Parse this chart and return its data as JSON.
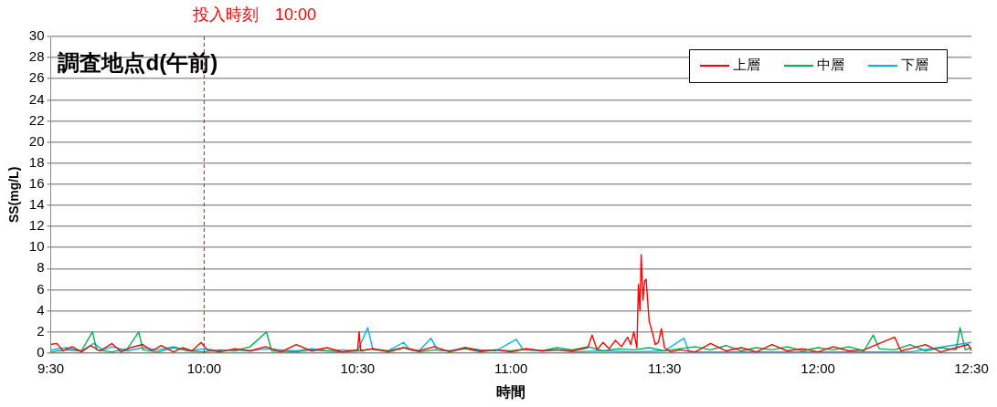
{
  "chart_data": {
    "type": "line",
    "title": "調査地点d(午前)",
    "xlabel": "時間",
    "ylabel": "SS(mg/L)",
    "xlim": [
      9.5,
      12.5
    ],
    "xticks": [
      {
        "value": 9.5,
        "label": "9:30"
      },
      {
        "value": 10,
        "label": "10:00"
      },
      {
        "value": 10.5,
        "label": "10:30"
      },
      {
        "value": 11,
        "label": "11:00"
      },
      {
        "value": 11.5,
        "label": "11:30"
      },
      {
        "value": 12,
        "label": "12:00"
      },
      {
        "value": 12.5,
        "label": "12:30"
      }
    ],
    "ylim": [
      0,
      30
    ],
    "yticks": [
      0,
      2,
      4,
      6,
      8,
      10,
      12,
      14,
      16,
      18,
      20,
      22,
      24,
      26,
      28,
      30
    ],
    "grid": "y",
    "legend": "top right",
    "marker": "none",
    "line_style": "solid",
    "ref_lines": [
      {
        "axis": "x",
        "value": 10,
        "label": "投入時刻　10:00",
        "color": "#ff0000",
        "line_style": "dashed"
      }
    ],
    "series": [
      {
        "name": "上層",
        "color": "#ff0000",
        "x": [
          9.5,
          9.52,
          9.54,
          9.57,
          9.6,
          9.63,
          9.66,
          9.7,
          9.73,
          9.76,
          9.8,
          9.83,
          9.86,
          9.9,
          9.93,
          9.96,
          9.99,
          10.01,
          10.05,
          10.1,
          10.15,
          10.2,
          10.25,
          10.3,
          10.35,
          10.4,
          10.45,
          10.5,
          10.505,
          10.51,
          10.55,
          10.6,
          10.65,
          10.7,
          10.75,
          10.8,
          10.85,
          10.9,
          10.95,
          11.0,
          11.05,
          11.1,
          11.15,
          11.2,
          11.25,
          11.264,
          11.28,
          11.3,
          11.32,
          11.34,
          11.36,
          11.38,
          11.39,
          11.4,
          11.41,
          11.415,
          11.42,
          11.424,
          11.43,
          11.435,
          11.44,
          11.445,
          11.45,
          11.46,
          11.47,
          11.48,
          11.49,
          11.5,
          11.52,
          11.55,
          11.6,
          11.65,
          11.7,
          11.75,
          11.8,
          11.85,
          11.9,
          11.95,
          12.0,
          12.05,
          12.1,
          12.15,
          12.2,
          12.25,
          12.27,
          12.3,
          12.35,
          12.4,
          12.45,
          12.49,
          12.5
        ],
        "values": [
          0.8,
          0.9,
          0.2,
          0.6,
          0.1,
          0.7,
          0.2,
          0.9,
          0.1,
          0.5,
          0.8,
          0.2,
          0.7,
          0.1,
          0.5,
          0.2,
          1.0,
          0.3,
          0.1,
          0.4,
          0.2,
          0.6,
          0.1,
          0.8,
          0.2,
          0.5,
          0.1,
          0.3,
          2.0,
          0.2,
          0.4,
          0.1,
          0.5,
          0.2,
          0.6,
          0.1,
          0.5,
          0.2,
          0.3,
          0.1,
          0.4,
          0.2,
          0.3,
          0.2,
          0.5,
          1.7,
          0.3,
          1.0,
          0.4,
          1.2,
          0.6,
          1.5,
          0.8,
          2.0,
          0.5,
          6.5,
          4.0,
          9.3,
          5.0,
          6.8,
          7.0,
          5.0,
          3.0,
          2.0,
          0.8,
          1.0,
          2.3,
          0.5,
          0.1,
          0.3,
          0.1,
          0.9,
          0.2,
          0.5,
          0.1,
          0.8,
          0.2,
          0.4,
          0.1,
          0.6,
          0.2,
          0.3,
          0.9,
          1.5,
          0.2,
          0.4,
          0.8,
          0.1,
          0.5,
          0.8,
          0.2
        ]
      },
      {
        "name": "中層",
        "color": "#00b050",
        "x": [
          9.5,
          9.55,
          9.6,
          9.636,
          9.65,
          9.7,
          9.75,
          9.787,
          9.8,
          9.85,
          9.9,
          9.95,
          10.0,
          10.05,
          10.1,
          10.15,
          10.203,
          10.22,
          10.3,
          10.35,
          10.4,
          10.45,
          10.5,
          10.55,
          10.6,
          10.65,
          10.7,
          10.75,
          10.8,
          10.85,
          10.9,
          10.95,
          11.0,
          11.05,
          11.1,
          11.15,
          11.2,
          11.25,
          11.3,
          11.35,
          11.4,
          11.45,
          11.5,
          11.55,
          11.6,
          11.65,
          11.7,
          11.75,
          11.8,
          11.85,
          11.9,
          11.95,
          12.0,
          12.05,
          12.1,
          12.15,
          12.18,
          12.2,
          12.25,
          12.3,
          12.35,
          12.4,
          12.45,
          12.463,
          12.48,
          12.5
        ],
        "values": [
          0.1,
          0.3,
          0.2,
          2.0,
          0.3,
          0.1,
          0.4,
          2.0,
          0.3,
          0.1,
          0.5,
          0.2,
          0.1,
          0.3,
          0.2,
          0.6,
          2.0,
          0.2,
          0.1,
          0.3,
          0.2,
          0.1,
          0.2,
          0.4,
          0.2,
          0.5,
          0.1,
          0.3,
          0.2,
          0.4,
          0.1,
          0.3,
          0.2,
          0.4,
          0.2,
          0.5,
          0.3,
          0.6,
          0.2,
          0.4,
          0.3,
          0.5,
          0.2,
          0.4,
          0.6,
          0.3,
          0.7,
          0.2,
          0.5,
          0.3,
          0.6,
          0.2,
          0.5,
          0.3,
          0.6,
          0.2,
          1.7,
          0.4,
          0.3,
          0.8,
          0.2,
          0.5,
          0.3,
          2.4,
          0.3,
          0.5
        ]
      },
      {
        "name": "下層",
        "color": "#00b0f0",
        "x": [
          9.5,
          9.55,
          9.6,
          9.64,
          9.67,
          9.7,
          9.75,
          9.8,
          9.85,
          9.9,
          9.95,
          10.0,
          10.05,
          10.1,
          10.15,
          10.2,
          10.25,
          10.3,
          10.35,
          10.4,
          10.45,
          10.5,
          10.533,
          10.55,
          10.6,
          10.65,
          10.67,
          10.7,
          10.739,
          10.76,
          10.8,
          10.85,
          10.9,
          10.95,
          11.017,
          11.04,
          11.1,
          11.15,
          11.2,
          11.3,
          11.4,
          11.5,
          11.563,
          11.58,
          11.7,
          11.9,
          12.1,
          12.3,
          12.5
        ],
        "values": [
          0.3,
          0.5,
          0.2,
          0.9,
          0.3,
          0.6,
          0.2,
          0.5,
          0.3,
          0.6,
          0.2,
          0.4,
          0.2,
          0.3,
          0.2,
          0.4,
          0.3,
          0.2,
          0.4,
          0.2,
          0.3,
          0.2,
          2.4,
          0.3,
          0.2,
          1.0,
          0.3,
          0.2,
          1.4,
          0.3,
          0.2,
          0.5,
          0.3,
          0.2,
          1.3,
          0.3,
          0.2,
          0.3,
          0.1,
          0.2,
          0.1,
          0.2,
          1.4,
          0.1,
          0.1,
          0.1,
          0.1,
          0.1,
          1.0
        ]
      }
    ]
  }
}
